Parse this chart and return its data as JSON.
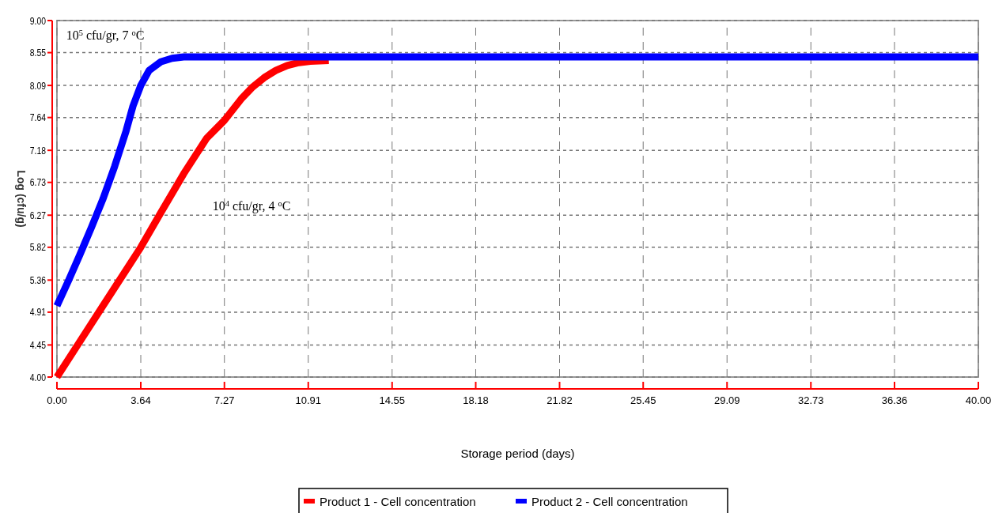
{
  "chart_data": {
    "type": "line",
    "xlabel": "Storage period (days)",
    "ylabel": "Log (cfu/g)",
    "xlim": [
      0,
      40
    ],
    "ylim": [
      4,
      9
    ],
    "xticks": [
      {
        "value": 0,
        "label": "0.00"
      },
      {
        "value": 3.64,
        "label": "3.64"
      },
      {
        "value": 7.27,
        "label": "7.27"
      },
      {
        "value": 10.91,
        "label": "10.91"
      },
      {
        "value": 14.55,
        "label": "14.55"
      },
      {
        "value": 18.18,
        "label": "18.18"
      },
      {
        "value": 21.82,
        "label": "21.82"
      },
      {
        "value": 25.45,
        "label": "25.45"
      },
      {
        "value": 29.09,
        "label": "29.09"
      },
      {
        "value": 32.73,
        "label": "32.73"
      },
      {
        "value": 36.36,
        "label": "36.36"
      },
      {
        "value": 40,
        "label": "40.00"
      }
    ],
    "yticks": [
      {
        "value": 4,
        "label": "4.00"
      },
      {
        "value": 4.45,
        "label": "4.45"
      },
      {
        "value": 4.91,
        "label": "4.91"
      },
      {
        "value": 5.36,
        "label": "5.36"
      },
      {
        "value": 5.82,
        "label": "5.82"
      },
      {
        "value": 6.27,
        "label": "6.27"
      },
      {
        "value": 6.73,
        "label": "6.73"
      },
      {
        "value": 7.18,
        "label": "7.18"
      },
      {
        "value": 7.64,
        "label": "7.64"
      },
      {
        "value": 8.09,
        "label": "8.09"
      },
      {
        "value": 8.55,
        "label": "8.55"
      },
      {
        "value": 9,
        "label": "9.00"
      }
    ],
    "grid": true,
    "legend": "bottom",
    "line_style": "solid",
    "marker": "none",
    "series": [
      {
        "name": "Product 1 - Cell concentration",
        "color": "#ff0000",
        "x": [
          0,
          1,
          2,
          3,
          3.64,
          4.5,
          5.5,
          6.5,
          7.27,
          8,
          8.5,
          9,
          9.5,
          10,
          10.5,
          11,
          11.8
        ],
        "values": [
          4.0,
          4.5,
          5.0,
          5.5,
          5.82,
          6.3,
          6.85,
          7.35,
          7.6,
          7.9,
          8.07,
          8.2,
          8.3,
          8.37,
          8.41,
          8.43,
          8.44
        ]
      },
      {
        "name": "Product 2 - Cell concentration",
        "color": "#0000ff",
        "x": [
          0,
          0.5,
          1,
          1.5,
          2,
          2.5,
          3,
          3.3,
          3.64,
          4,
          4.5,
          5,
          5.5,
          40
        ],
        "values": [
          5.0,
          5.35,
          5.72,
          6.1,
          6.5,
          6.95,
          7.45,
          7.8,
          8.09,
          8.3,
          8.42,
          8.47,
          8.49,
          8.49
        ]
      }
    ],
    "annotations": [
      "10$^{5}$ cfu/gr, 7 $^{o}$C",
      "10$^{4}$ cfu/gr, 4 $^{o}$C"
    ]
  }
}
